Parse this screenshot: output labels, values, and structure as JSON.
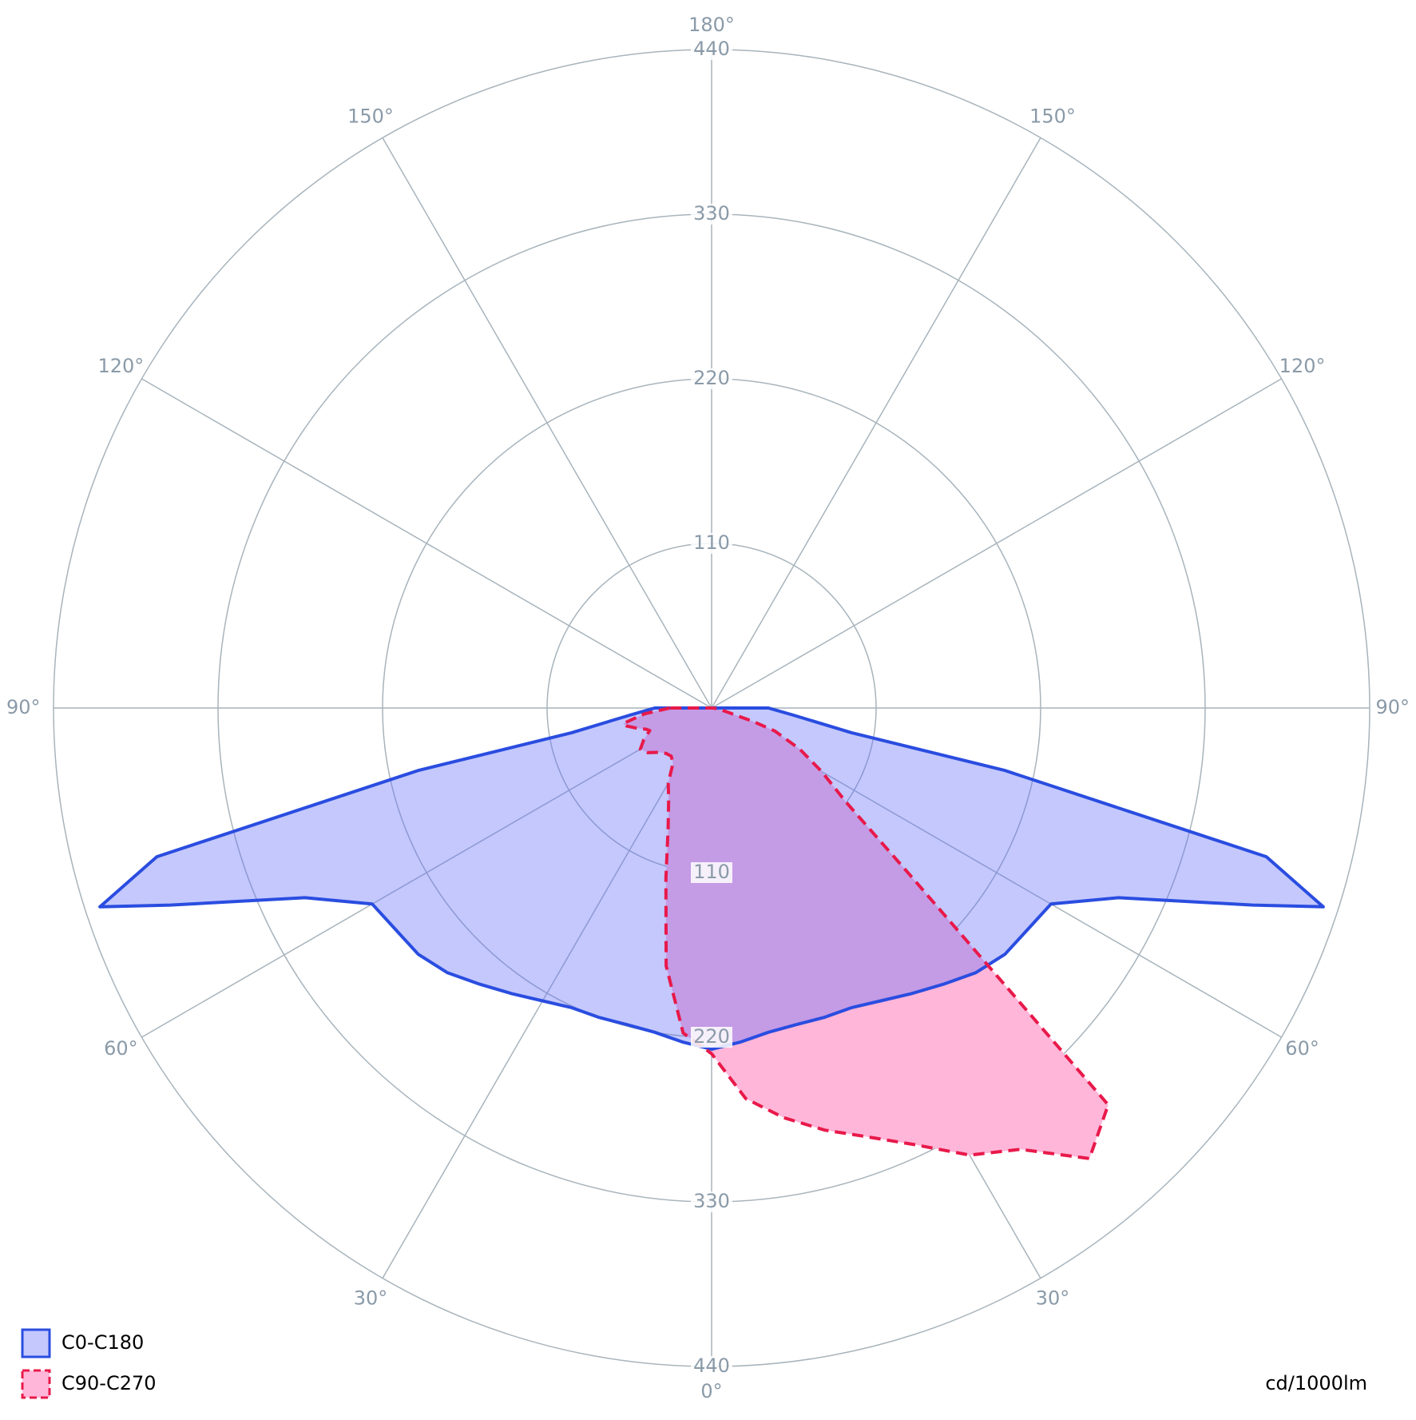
{
  "chart_data": {
    "type": "polar",
    "unit": "cd/1000lm",
    "rlim": [
      0,
      440
    ],
    "rticks": [
      110,
      220,
      330,
      440
    ],
    "angle_ticks": [
      {
        "value": 0,
        "label": "0°"
      },
      {
        "value": 30,
        "label": "30°"
      },
      {
        "value": 60,
        "label": "60°"
      },
      {
        "value": 90,
        "label": "90°"
      },
      {
        "value": 120,
        "label": "120°"
      },
      {
        "value": 150,
        "label": "150°"
      },
      {
        "value": 180,
        "label": "180°"
      }
    ],
    "x": [
      -90,
      -85,
      -80,
      -78,
      -75,
      -72,
      -70,
      -65,
      -60,
      -55,
      -50,
      -45,
      -40,
      -35,
      -30,
      -25,
      -20,
      -15,
      -10,
      -5,
      0,
      5,
      10,
      15,
      20,
      25,
      30,
      35,
      40,
      45,
      50,
      55,
      60,
      65,
      70,
      72,
      75,
      78,
      80,
      85,
      90
    ],
    "series": [
      {
        "name": "C90-C270",
        "color": "#e8194a",
        "fill": "#ffb6d9",
        "dashed": true,
        "values": [
          28,
          45,
          60,
          58,
          52,
          46,
          44,
          50,
          55,
          52,
          46,
          43,
          42,
          45,
          58,
          68,
          85,
          118,
          175,
          218,
          231,
          262,
          278,
          292,
          305,
          322,
          345,
          360,
          393,
          375,
          172,
          110,
          85,
          65,
          45,
          30,
          12,
          7,
          5,
          2,
          0
        ]
      },
      {
        "name": "C0-C180",
        "color": "#2a4de0",
        "fill": "#646efa",
        "dashed": false,
        "values": [
          38,
          55,
          95,
          200,
          384,
          430,
          385,
          300,
          262,
          258,
          256,
          250,
          241,
          233,
          226,
          221,
          220,
          219,
          220,
          224,
          228,
          224,
          220,
          219,
          220,
          221,
          226,
          233,
          241,
          250,
          256,
          258,
          262,
          300,
          385,
          430,
          384,
          200,
          95,
          55,
          38
        ]
      }
    ],
    "legend": "bottom-left"
  }
}
